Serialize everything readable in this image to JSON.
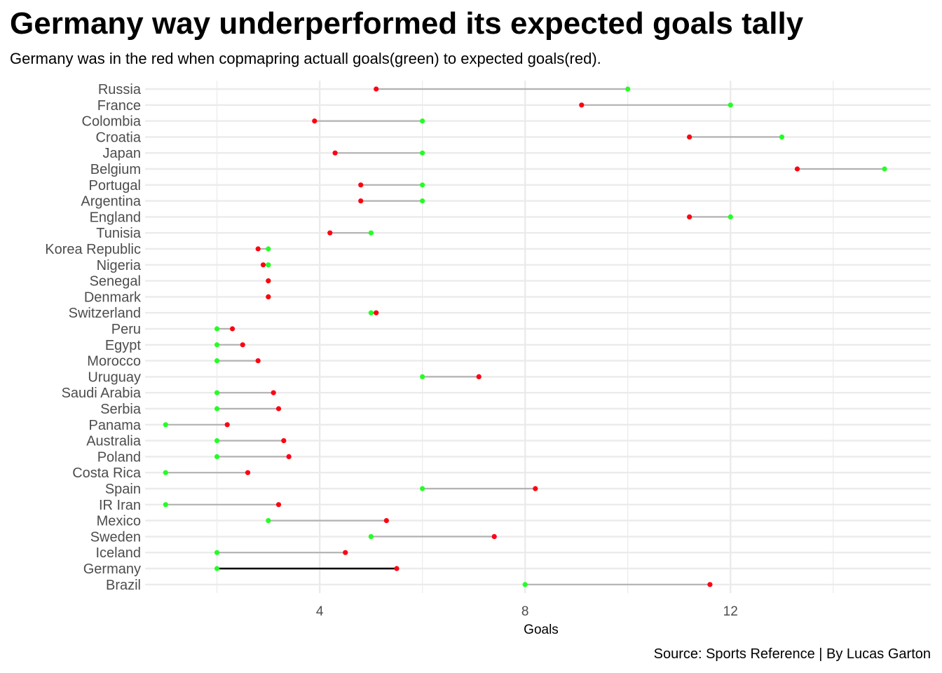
{
  "chart_data": {
    "type": "dumbbell",
    "title": "Germany way underperformed its expected goals tally",
    "subtitle": "Germany was in the red when copmapring actuall goals(green) to expected goals(red).",
    "caption": "Source: Sports Reference | By Lucas Garton",
    "xlabel": "Goals",
    "ylabel": "",
    "xlim": [
      0.6,
      15.9
    ],
    "xticks": [
      4,
      8,
      12
    ],
    "grid": true,
    "highlight": "Germany",
    "colors": {
      "goals": "#22ff22",
      "expected": "#ff0011",
      "segment": "#b3b3b3",
      "highlight_segment": "#000000",
      "grid": "#ebebeb"
    },
    "categories": [
      "Russia",
      "France",
      "Colombia",
      "Croatia",
      "Japan",
      "Belgium",
      "Portugal",
      "Argentina",
      "England",
      "Tunisia",
      "Korea Republic",
      "Nigeria",
      "Senegal",
      "Denmark",
      "Switzerland",
      "Peru",
      "Egypt",
      "Morocco",
      "Uruguay",
      "Saudi Arabia",
      "Serbia",
      "Panama",
      "Australia",
      "Poland",
      "Costa Rica",
      "Spain",
      "IR Iran",
      "Mexico",
      "Sweden",
      "Iceland",
      "Germany",
      "Brazil"
    ],
    "series": [
      {
        "key": "goals",
        "values": [
          10,
          12,
          6,
          13,
          6,
          15,
          6,
          6,
          12,
          5,
          3,
          3,
          3,
          3,
          5,
          2,
          2,
          2,
          6,
          2,
          2,
          1,
          2,
          2,
          1,
          6,
          1,
          3,
          5,
          2,
          2,
          8
        ]
      },
      {
        "key": "expected",
        "values": [
          5.1,
          9.1,
          3.9,
          11.2,
          4.3,
          13.3,
          4.8,
          4.8,
          11.2,
          4.2,
          2.8,
          2.9,
          3.0,
          3.0,
          5.1,
          2.3,
          2.5,
          2.8,
          7.1,
          3.1,
          3.2,
          2.2,
          3.3,
          3.4,
          2.6,
          8.2,
          3.2,
          5.3,
          7.4,
          4.5,
          5.5,
          11.6
        ]
      }
    ]
  }
}
